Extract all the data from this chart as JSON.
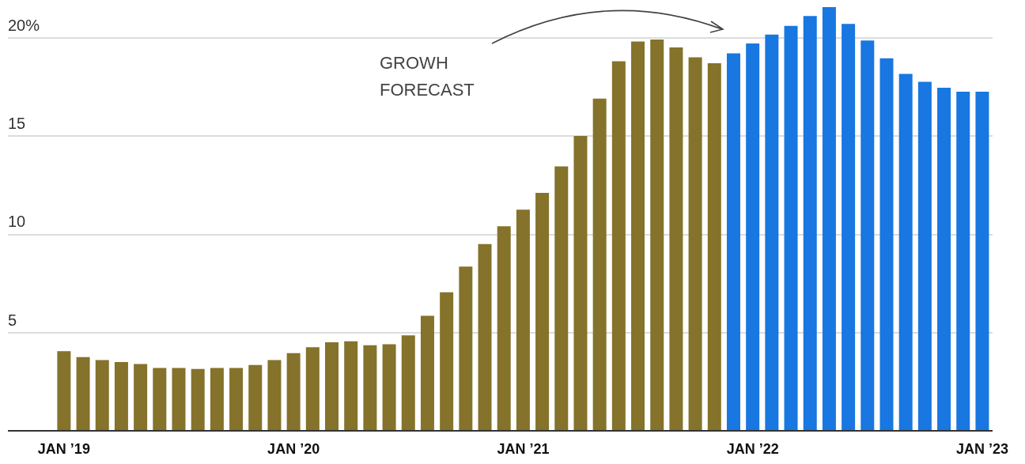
{
  "chart_data": {
    "type": "bar",
    "categories": [
      "JAN ’19",
      null,
      null,
      null,
      null,
      null,
      null,
      null,
      null,
      null,
      null,
      null,
      "JAN ’20",
      null,
      null,
      null,
      null,
      null,
      null,
      null,
      null,
      null,
      null,
      null,
      "JAN ’21",
      null,
      null,
      null,
      null,
      null,
      null,
      null,
      null,
      null,
      null,
      null,
      "JAN ’22",
      null,
      null,
      null,
      null,
      null,
      null,
      null,
      null,
      null,
      null,
      null,
      "JAN ’23"
    ],
    "values": [
      4.05,
      3.75,
      3.6,
      3.5,
      3.4,
      3.2,
      3.2,
      3.15,
      3.2,
      3.2,
      3.35,
      3.6,
      3.95,
      4.25,
      4.5,
      4.55,
      4.35,
      4.4,
      4.85,
      5.85,
      7.05,
      8.35,
      9.5,
      10.4,
      11.25,
      12.1,
      13.45,
      15.0,
      16.9,
      18.8,
      19.8,
      19.9,
      19.5,
      19.0,
      18.7,
      19.2,
      19.7,
      20.15,
      20.6,
      21.1,
      21.55,
      20.7,
      19.85,
      18.95,
      18.15,
      17.75,
      17.45,
      17.25,
      17.25
    ],
    "colors": [
      "#85722b",
      "#85722b",
      "#85722b",
      "#85722b",
      "#85722b",
      "#85722b",
      "#85722b",
      "#85722b",
      "#85722b",
      "#85722b",
      "#85722b",
      "#85722b",
      "#85722b",
      "#85722b",
      "#85722b",
      "#85722b",
      "#85722b",
      "#85722b",
      "#85722b",
      "#85722b",
      "#85722b",
      "#85722b",
      "#85722b",
      "#85722b",
      "#85722b",
      "#85722b",
      "#85722b",
      "#85722b",
      "#85722b",
      "#85722b",
      "#85722b",
      "#85722b",
      "#85722b",
      "#85722b",
      "#85722b",
      "#1877e0",
      "#1877e0",
      "#1877e0",
      "#1877e0",
      "#1877e0",
      "#1877e0",
      "#1877e0",
      "#1877e0",
      "#1877e0",
      "#1877e0",
      "#1877e0",
      "#1877e0",
      "#1877e0",
      "#1877e0"
    ],
    "ylim": [
      0,
      21.55
    ],
    "yticks": [
      {
        "value": 0,
        "label": null
      },
      5,
      10,
      15,
      {
        "value": 20,
        "label": "20%"
      }
    ],
    "grid": "y",
    "annotations": [
      "GROWH FORECAST"
    ]
  }
}
